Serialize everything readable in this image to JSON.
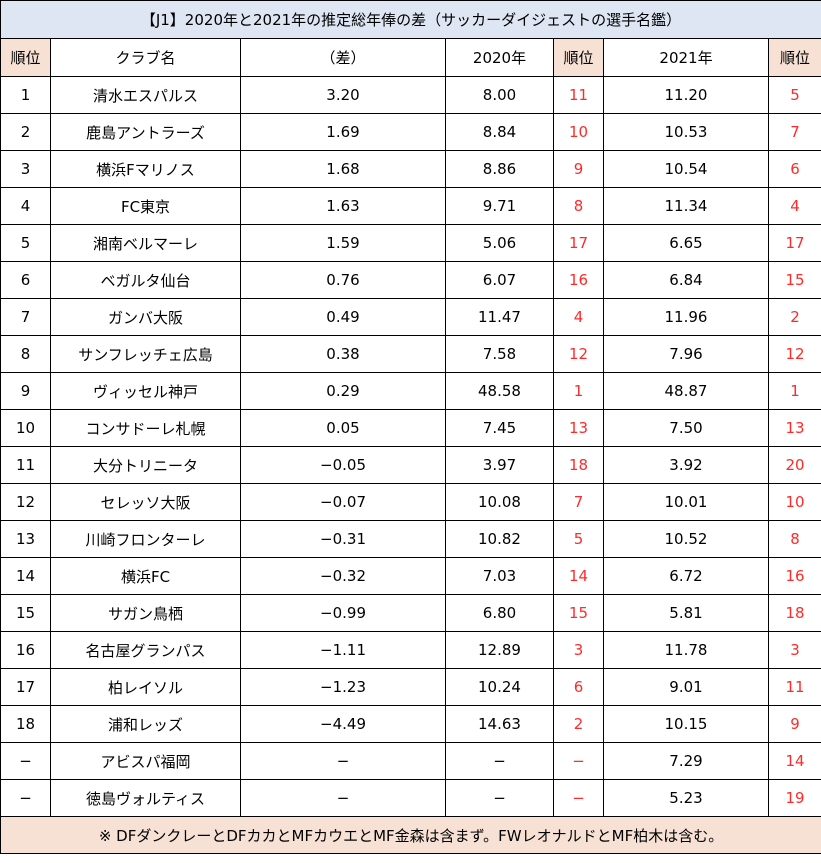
{
  "title": "【J1】2020年と2021年の推定総年俸の差（サッカーダイジェストの選手名鑑）",
  "headers": {
    "rank": "順位",
    "club": "クラブ名",
    "diff": "（差）",
    "y2020": "2020年",
    "rank2020": "順位",
    "y2021": "2021年",
    "rank2021": "順位"
  },
  "rows": [
    {
      "rank": "1",
      "club": "清水エスパルス",
      "diff": "3.20",
      "y2020": "8.00",
      "rank2020": "11",
      "y2021": "11.20",
      "rank2021": "5"
    },
    {
      "rank": "2",
      "club": "鹿島アントラーズ",
      "diff": "1.69",
      "y2020": "8.84",
      "rank2020": "10",
      "y2021": "10.53",
      "rank2021": "7"
    },
    {
      "rank": "3",
      "club": "横浜Fマリノス",
      "diff": "1.68",
      "y2020": "8.86",
      "rank2020": "9",
      "y2021": "10.54",
      "rank2021": "6"
    },
    {
      "rank": "4",
      "club": "FC東京",
      "diff": "1.63",
      "y2020": "9.71",
      "rank2020": "8",
      "y2021": "11.34",
      "rank2021": "4"
    },
    {
      "rank": "5",
      "club": "湘南ベルマーレ",
      "diff": "1.59",
      "y2020": "5.06",
      "rank2020": "17",
      "y2021": "6.65",
      "rank2021": "17"
    },
    {
      "rank": "6",
      "club": "ベガルタ仙台",
      "diff": "0.76",
      "y2020": "6.07",
      "rank2020": "16",
      "y2021": "6.84",
      "rank2021": "15"
    },
    {
      "rank": "7",
      "club": "ガンバ大阪",
      "diff": "0.49",
      "y2020": "11.47",
      "rank2020": "4",
      "y2021": "11.96",
      "rank2021": "2"
    },
    {
      "rank": "8",
      "club": "サンフレッチェ広島",
      "diff": "0.38",
      "y2020": "7.58",
      "rank2020": "12",
      "y2021": "7.96",
      "rank2021": "12"
    },
    {
      "rank": "9",
      "club": "ヴィッセル神戸",
      "diff": "0.29",
      "y2020": "48.58",
      "rank2020": "1",
      "y2021": "48.87",
      "rank2021": "1"
    },
    {
      "rank": "10",
      "club": "コンサドーレ札幌",
      "diff": "0.05",
      "y2020": "7.45",
      "rank2020": "13",
      "y2021": "7.50",
      "rank2021": "13"
    },
    {
      "rank": "11",
      "club": "大分トリニータ",
      "diff": "−0.05",
      "y2020": "3.97",
      "rank2020": "18",
      "y2021": "3.92",
      "rank2021": "20"
    },
    {
      "rank": "12",
      "club": "セレッソ大阪",
      "diff": "−0.07",
      "y2020": "10.08",
      "rank2020": "7",
      "y2021": "10.01",
      "rank2021": "10"
    },
    {
      "rank": "13",
      "club": "川崎フロンターレ",
      "diff": "−0.31",
      "y2020": "10.82",
      "rank2020": "5",
      "y2021": "10.52",
      "rank2021": "8"
    },
    {
      "rank": "14",
      "club": "横浜FC",
      "diff": "−0.32",
      "y2020": "7.03",
      "rank2020": "14",
      "y2021": "6.72",
      "rank2021": "16"
    },
    {
      "rank": "15",
      "club": "サガン鳥栖",
      "diff": "−0.99",
      "y2020": "6.80",
      "rank2020": "15",
      "y2021": "5.81",
      "rank2021": "18"
    },
    {
      "rank": "16",
      "club": "名古屋グランパス",
      "diff": "−1.11",
      "y2020": "12.89",
      "rank2020": "3",
      "y2021": "11.78",
      "rank2021": "3"
    },
    {
      "rank": "17",
      "club": "柏レイソル",
      "diff": "−1.23",
      "y2020": "10.24",
      "rank2020": "6",
      "y2021": "9.01",
      "rank2021": "11"
    },
    {
      "rank": "18",
      "club": "浦和レッズ",
      "diff": "−4.49",
      "y2020": "14.63",
      "rank2020": "2",
      "y2021": "10.15",
      "rank2021": "9"
    },
    {
      "rank": "−",
      "club": "アビスパ福岡",
      "diff": "−",
      "y2020": "−",
      "rank2020": "−",
      "y2021": "7.29",
      "rank2021": "14"
    },
    {
      "rank": "−",
      "club": "徳島ヴォルティス",
      "diff": "−",
      "y2020": "−",
      "rank2020": "−",
      "y2021": "5.23",
      "rank2021": "19"
    }
  ],
  "note": "※ DFダンクレーとDFカカとMFカウエとMF金森は含まず。FWレオナルドとMF柏木は含む。",
  "colors": {
    "title_bg": "#dde6f2",
    "rank_header_bg": "#f7e1d5",
    "note_bg": "#f7e1d5",
    "rank_text": "#ff2a2a"
  }
}
